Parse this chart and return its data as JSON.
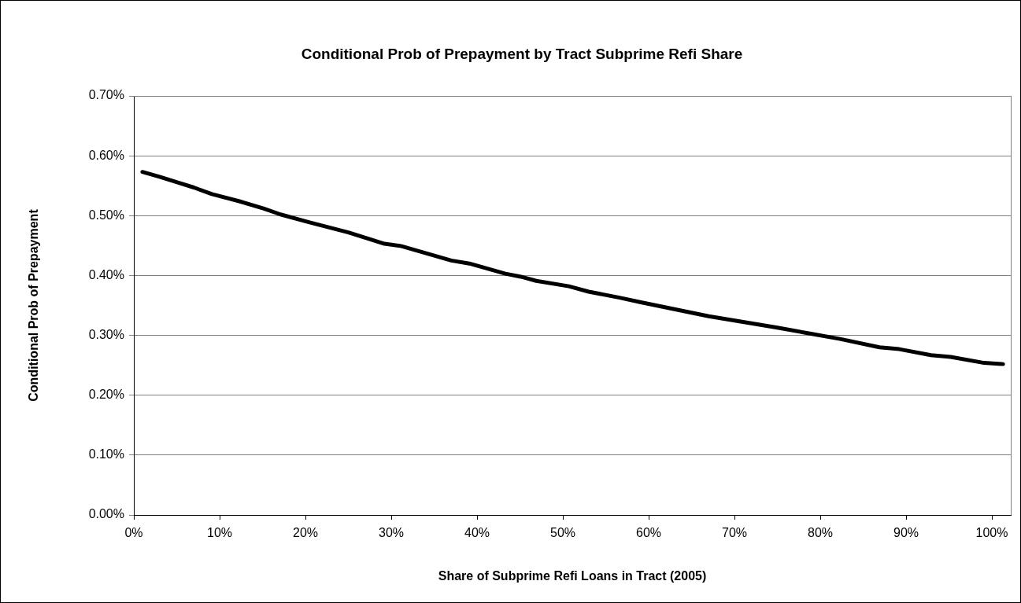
{
  "chart_data": {
    "type": "line",
    "title": "Conditional Prob of Prepayment by Tract Subprime Refi Share",
    "xlabel": "Share of Subprime Refi Loans in Tract (2005)",
    "ylabel": "Conditional Prob of Prepayment",
    "x": [
      1.0,
      3.0,
      5.2,
      7.0,
      9.1,
      12.3,
      15.1,
      17.1,
      20.4,
      25.0,
      27.4,
      29.2,
      31.2,
      37.0,
      39.1,
      43.3,
      45.1,
      46.9,
      50.7,
      53.0,
      56.6,
      59.2,
      67.0,
      75.0,
      78.4,
      82.3,
      86.9,
      89.2,
      92.9,
      95.2,
      99.1,
      101.3
    ],
    "series": [
      {
        "color": "#000000",
        "values": [
          0.573,
          0.565,
          0.555,
          0.547,
          0.536,
          0.524,
          0.512,
          0.502,
          0.489,
          0.472,
          0.461,
          0.453,
          0.449,
          0.425,
          0.42,
          0.403,
          0.398,
          0.391,
          0.382,
          0.373,
          0.363,
          0.355,
          0.332,
          0.313,
          0.304,
          0.294,
          0.28,
          0.277,
          0.267,
          0.264,
          0.254,
          0.252
        ]
      }
    ],
    "xlim": [
      0,
      102.2
    ],
    "xticks": [
      {
        "value": 0,
        "label": "0%"
      },
      {
        "value": 10,
        "label": "10%"
      },
      {
        "value": 20,
        "label": "20%"
      },
      {
        "value": 30,
        "label": "30%"
      },
      {
        "value": 40,
        "label": "40%"
      },
      {
        "value": 50,
        "label": "50%"
      },
      {
        "value": 60,
        "label": "60%"
      },
      {
        "value": 70,
        "label": "70%"
      },
      {
        "value": 80,
        "label": "80%"
      },
      {
        "value": 90,
        "label": "90%"
      },
      {
        "value": 100,
        "label": "100%"
      }
    ],
    "ylim": [
      0,
      0.7
    ],
    "yticks": [
      {
        "value": 0,
        "label": "0.00%"
      },
      {
        "value": 0.1,
        "label": "0.10%"
      },
      {
        "value": 0.2,
        "label": "0.20%"
      },
      {
        "value": 0.3,
        "label": "0.30%"
      },
      {
        "value": 0.4,
        "label": "0.40%"
      },
      {
        "value": 0.5,
        "label": "0.50%"
      },
      {
        "value": 0.6,
        "label": "0.60%"
      },
      {
        "value": 0.7,
        "label": "0.70%"
      }
    ],
    "grid": "y",
    "legend": false,
    "marker": "none",
    "line_style": "solid"
  }
}
